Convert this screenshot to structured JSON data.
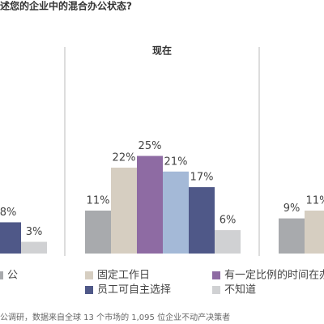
{
  "title": "述您的企业中的混合办公状态?",
  "chart_data": [
    {
      "type": "bar",
      "values": [
        8,
        3
      ],
      "value_labels": [
        "8%",
        "3%"
      ],
      "colors": [
        "#4f5888",
        "#d0d1d3"
      ]
    },
    {
      "type": "bar",
      "title": "现在",
      "values": [
        11,
        22,
        25,
        21,
        17,
        6
      ],
      "value_labels": [
        "11%",
        "22%",
        "25%",
        "21%",
        "17%",
        "6%"
      ],
      "colors": [
        "#a8aaad",
        "#d6cec1",
        "#8e6ba3",
        "#a4b9d7",
        "#4f5888",
        "#d0d1d3"
      ]
    },
    {
      "type": "bar",
      "values": [
        9,
        11
      ],
      "value_labels": [
        "9%",
        "11%"
      ],
      "colors": [
        "#a8aaad",
        "#d6cec1"
      ]
    }
  ],
  "legend": [
    {
      "name": "公",
      "color": "#a8aaad"
    },
    {
      "name": "固定工作日",
      "color": "#d6cec1"
    },
    {
      "name": "有一定比例的时间在办",
      "color": "#8e6ba3"
    },
    {
      "name": "员工可自主选择",
      "color": "#4f5888"
    },
    {
      "name": "不知道",
      "color": "#d0d1d3"
    }
  ],
  "footnote": "公调研，数据来自全球 13 个市场的 1,095 位企业不动产决策者"
}
